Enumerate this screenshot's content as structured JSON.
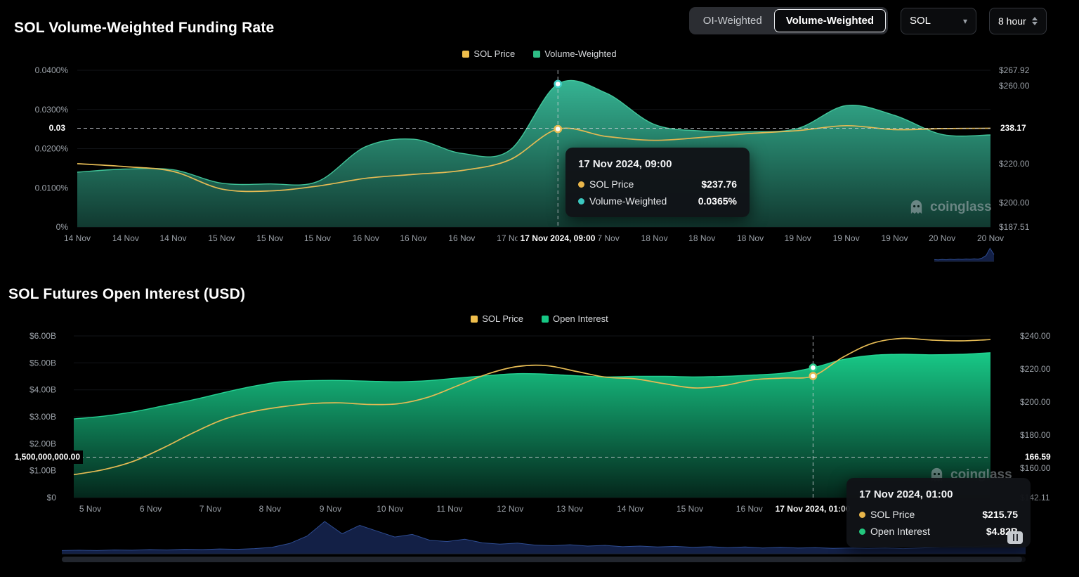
{
  "page": {
    "background": "#000000"
  },
  "header": {
    "toggle": {
      "options": [
        "OI-Weighted",
        "Volume-Weighted"
      ],
      "selected": "Volume-Weighted"
    },
    "symbol": "SOL",
    "interval": "8 hour"
  },
  "watermark": {
    "text": "coinglass"
  },
  "tooltips": [
    {
      "title": "17 Nov 2024, 09:00",
      "rows": [
        {
          "label": "SOL Price",
          "value": "$237.76",
          "color": "#E9B64A"
        },
        {
          "label": "Volume-Weighted",
          "value": "0.0365%",
          "color": "#3BC8C0"
        }
      ]
    },
    {
      "title": "17 Nov 2024, 01:00",
      "rows": [
        {
          "label": "SOL Price",
          "value": "$215.75",
          "color": "#E9B64A"
        },
        {
          "label": "Open Interest",
          "value": "$4.82B",
          "color": "#23C77E"
        }
      ]
    }
  ],
  "chart_data": [
    {
      "type": "area",
      "title": "SOL Volume-Weighted Funding Rate",
      "legend": [
        {
          "label": "SOL Price",
          "color": "#EFBE4C"
        },
        {
          "label": "Volume-Weighted",
          "color": "#2EBD85"
        }
      ],
      "legend_position": "top-center",
      "grid": false,
      "x_ticks": [
        {
          "label": "14 Nov",
          "t": 0.0
        },
        {
          "label": "14 Nov",
          "t": 0.053
        },
        {
          "label": "14 Nov",
          "t": 0.105
        },
        {
          "label": "15 Nov",
          "t": 0.158
        },
        {
          "label": "15 Nov",
          "t": 0.211
        },
        {
          "label": "15 Nov",
          "t": 0.263
        },
        {
          "label": "16 Nov",
          "t": 0.316
        },
        {
          "label": "16 Nov",
          "t": 0.368
        },
        {
          "label": "16 Nov",
          "t": 0.421
        },
        {
          "label": "17 Nov",
          "t": 0.474
        },
        {
          "label": "17 Nov",
          "t": 0.526
        },
        {
          "label": "17 Nov",
          "t": 0.579
        },
        {
          "label": "18 Nov",
          "t": 0.632
        },
        {
          "label": "18 Nov",
          "t": 0.684
        },
        {
          "label": "18 Nov",
          "t": 0.737
        },
        {
          "label": "19 Nov",
          "t": 0.789
        },
        {
          "label": "19 Nov",
          "t": 0.842
        },
        {
          "label": "19 Nov",
          "t": 0.895
        },
        {
          "label": "20 Nov",
          "t": 0.947
        },
        {
          "label": "20 Nov",
          "t": 1.0
        }
      ],
      "series": [
        {
          "name": "Volume-Weighted",
          "type": "area",
          "axis": "left",
          "unit": "%",
          "color": "#2EBD85",
          "values": [
            0.014,
            0.0148,
            0.0146,
            0.0112,
            0.011,
            0.0116,
            0.0205,
            0.0224,
            0.0188,
            0.0196,
            0.0365,
            0.0342,
            0.0262,
            0.0245,
            0.0243,
            0.0252,
            0.031,
            0.0285,
            0.0236,
            0.0235
          ]
        },
        {
          "name": "SOL Price",
          "type": "line",
          "axis": "right",
          "unit": "USD",
          "color": "#E5BB54",
          "values": [
            220,
            218.5,
            216,
            207,
            206,
            208.5,
            212.5,
            214.5,
            216.5,
            222,
            237.76,
            234,
            232,
            233.5,
            235.5,
            237,
            239.5,
            237.5,
            238,
            238.17
          ]
        }
      ],
      "y_left": {
        "unit": "%",
        "range": [
          0,
          0.04
        ],
        "ticks": [
          {
            "label": "0.0400%",
            "value": 0.04
          },
          {
            "label": "0.0300%",
            "value": 0.03
          },
          {
            "label": "0.0200%",
            "value": 0.02
          },
          {
            "label": "0.0100%",
            "value": 0.01
          },
          {
            "label": "0%",
            "value": 0
          }
        ]
      },
      "y_right": {
        "unit": "USD",
        "range": [
          187.51,
          267.92
        ],
        "ticks": [
          {
            "label": "$267.92",
            "value": 267.92
          },
          {
            "label": "$260.00",
            "value": 260
          },
          {
            "label": "$220.00",
            "value": 220
          },
          {
            "label": "$200.00",
            "value": 200
          },
          {
            "label": "$187.51",
            "value": 187.51
          }
        ]
      },
      "marker_line": {
        "axis": "right",
        "value": 238.17,
        "left_label": "0.03",
        "right_label": "238.17"
      },
      "crosshair": {
        "index": 10,
        "x_label": "17 Nov 2024, 09:00"
      },
      "navigator": {
        "values": [
          0.12,
          0.1,
          0.13,
          0.11,
          0.14,
          0.12,
          0.15,
          0.13,
          0.16,
          0.14,
          0.17,
          0.15,
          0.22,
          0.38,
          0.85,
          0.45
        ]
      }
    },
    {
      "type": "area",
      "title": "SOL Futures Open Interest (USD)",
      "legend": [
        {
          "label": "SOL Price",
          "color": "#EFBE4C"
        },
        {
          "label": "Open Interest",
          "color": "#16C784"
        }
      ],
      "legend_position": "top-center",
      "grid": false,
      "x_ticks": [
        {
          "label": "5 Nov",
          "t": 0.018
        },
        {
          "label": "6 Nov",
          "t": 0.084
        },
        {
          "label": "7 Nov",
          "t": 0.149
        },
        {
          "label": "8 Nov",
          "t": 0.214
        },
        {
          "label": "9 Nov",
          "t": 0.28
        },
        {
          "label": "10 Nov",
          "t": 0.345
        },
        {
          "label": "11 Nov",
          "t": 0.41
        },
        {
          "label": "12 Nov",
          "t": 0.476
        },
        {
          "label": "13 Nov",
          "t": 0.541
        },
        {
          "label": "14 Nov",
          "t": 0.607
        },
        {
          "label": "15 Nov",
          "t": 0.672
        },
        {
          "label": "16 Nov",
          "t": 0.737
        }
      ],
      "series": [
        {
          "name": "Open Interest",
          "type": "area",
          "axis": "left",
          "unit": "B USD",
          "color": "#16C784",
          "values": [
            2.92,
            3.02,
            3.18,
            3.4,
            3.62,
            3.88,
            4.12,
            4.3,
            4.34,
            4.35,
            4.32,
            4.3,
            4.34,
            4.44,
            4.53,
            4.6,
            4.58,
            4.52,
            4.48,
            4.5,
            4.5,
            4.48,
            4.5,
            4.55,
            4.62,
            4.82,
            5.12,
            5.28,
            5.32,
            5.3,
            5.32,
            5.38
          ]
        },
        {
          "name": "SOL Price",
          "type": "line",
          "axis": "right",
          "unit": "USD",
          "color": "#E5BB54",
          "values": [
            156,
            159,
            164,
            172,
            181,
            189,
            194,
            197,
            199,
            199.5,
            198.5,
            199,
            203,
            210,
            217,
            221.5,
            222,
            218.5,
            215,
            214,
            211,
            208.5,
            210,
            213.5,
            214.5,
            215.75,
            227,
            235.5,
            238.5,
            237.5,
            237,
            237.8
          ]
        }
      ],
      "y_left": {
        "unit": "B USD",
        "range": [
          0,
          6
        ],
        "ticks": [
          {
            "label": "$6.00B",
            "value": 6
          },
          {
            "label": "$5.00B",
            "value": 5
          },
          {
            "label": "$4.00B",
            "value": 4
          },
          {
            "label": "$3.00B",
            "value": 3
          },
          {
            "label": "$2.00B",
            "value": 2
          },
          {
            "label": "$1.00B",
            "value": 1
          },
          {
            "label": "$0",
            "value": 0
          }
        ]
      },
      "y_right": {
        "unit": "USD",
        "range": [
          142.11,
          240
        ],
        "ticks": [
          {
            "label": "$240.00",
            "value": 240
          },
          {
            "label": "$220.00",
            "value": 220
          },
          {
            "label": "$200.00",
            "value": 200
          },
          {
            "label": "$180.00",
            "value": 180
          },
          {
            "label": "$160.00",
            "value": 160
          },
          {
            "label": "$142.11",
            "value": 142.11
          }
        ]
      },
      "marker_line": {
        "axis": "left",
        "value": 1.5,
        "left_label": "1,500,000,000.00",
        "right_label": "166.59"
      },
      "crosshair": {
        "index": 25,
        "x_label": "17 Nov 2024, 01:00"
      },
      "navigator": {
        "values": [
          0.1,
          0.11,
          0.1,
          0.12,
          0.11,
          0.13,
          0.12,
          0.14,
          0.13,
          0.15,
          0.14,
          0.16,
          0.2,
          0.32,
          0.55,
          1.0,
          0.62,
          0.88,
          0.7,
          0.52,
          0.6,
          0.42,
          0.38,
          0.45,
          0.34,
          0.3,
          0.33,
          0.27,
          0.25,
          0.28,
          0.24,
          0.26,
          0.22,
          0.24,
          0.21,
          0.23,
          0.2,
          0.22,
          0.19,
          0.21,
          0.18,
          0.2,
          0.18,
          0.19,
          0.17,
          0.18,
          0.17,
          0.18,
          0.16,
          0.18,
          0.2,
          0.24,
          0.22,
          0.26,
          0.3,
          0.36
        ]
      }
    }
  ]
}
